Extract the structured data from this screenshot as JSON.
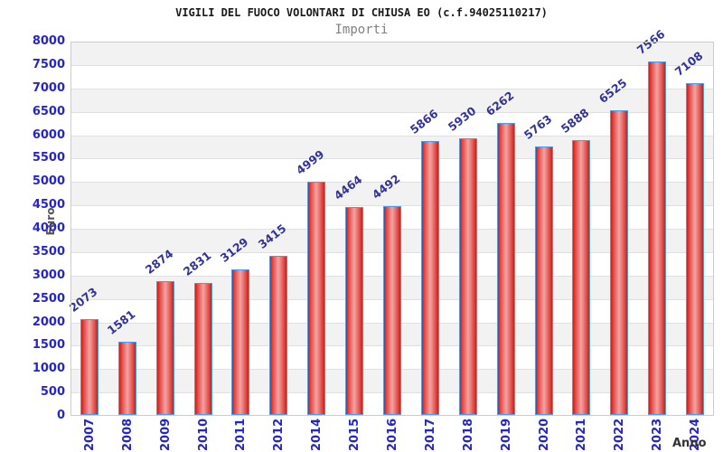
{
  "page": {
    "title": "VIGILI DEL FUOCO VOLONTARI DI CHIUSA EO (c.f.94025110217)",
    "subtitle": "Importi"
  },
  "chart_data": {
    "type": "bar",
    "title": "VIGILI DEL FUOCO VOLONTARI DI CHIUSA EO (c.f.94025110217)",
    "subtitle": "Importi",
    "xlabel": "Anno",
    "ylabel": "Euro",
    "categories": [
      "2007",
      "2008",
      "2009",
      "2010",
      "2011",
      "2012",
      "2014",
      "2015",
      "2016",
      "2017",
      "2018",
      "2019",
      "2020",
      "2021",
      "2022",
      "2023",
      "2024"
    ],
    "values": [
      2073,
      1581,
      2874,
      2831,
      3129,
      3415,
      4999,
      4464,
      4492,
      5866,
      5930,
      6262,
      5763,
      5888,
      6525,
      7566,
      7108
    ],
    "ylim": [
      0,
      8000
    ],
    "yticks": [
      0,
      500,
      1000,
      1500,
      2000,
      2500,
      3000,
      3500,
      4000,
      4500,
      5000,
      5500,
      6000,
      6500,
      7000,
      7500,
      8000
    ],
    "grid": "horizontal-bands-alternating",
    "legend": "none",
    "value_labels_rotated": true,
    "colors": {
      "bar_edge_red": "#c5211e",
      "bar_mid_red": "#f2a4a4",
      "bar_border_blue": "#4a9ded",
      "axis_label_blue": "#2525cc",
      "value_label_navy": "#333399",
      "band_gray": "#f2f2f2",
      "grid_line_gray": "#e0e0e0",
      "axis_title_gray": "#555555",
      "title_black": "#1a1a1a",
      "subtitle_gray": "#808080"
    }
  }
}
